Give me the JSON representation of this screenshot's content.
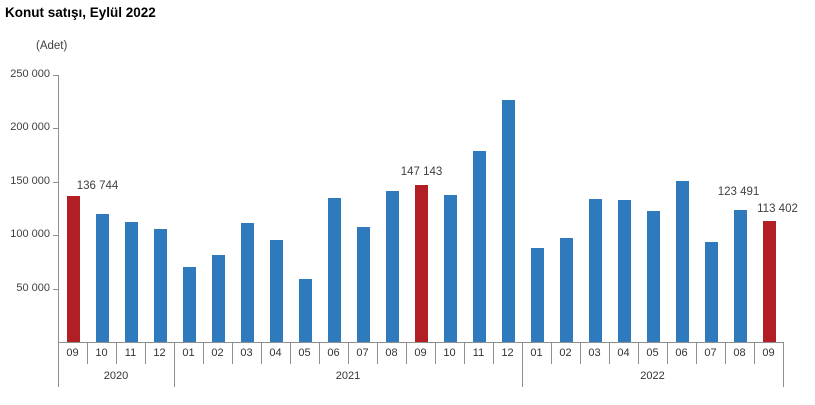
{
  "page": {
    "title": "Konut satışı, Eylül 2022",
    "unit_label": "(Adet)"
  },
  "colors": {
    "bar_blue": "#2e7abc",
    "bar_red": "#b11f24",
    "axis_line": "#8f8f8f",
    "value_text": "#404040"
  },
  "chart_data": {
    "type": "bar",
    "title": "Konut satışı, Eylül 2022",
    "ylabel": "(Adet)",
    "ylim": [
      0,
      250000
    ],
    "y_tick_step": 50000,
    "y_ticks": [
      "250 000",
      "200 000",
      "150 000",
      "100 000",
      "50 000"
    ],
    "grid": false,
    "legend": "none",
    "groups": [
      {
        "year": "2020",
        "months": [
          "09",
          "10",
          "11",
          "12"
        ]
      },
      {
        "year": "2021",
        "months": [
          "01",
          "02",
          "03",
          "04",
          "05",
          "06",
          "07",
          "08",
          "09",
          "10",
          "11",
          "12"
        ]
      },
      {
        "year": "2022",
        "months": [
          "01",
          "02",
          "03",
          "04",
          "05",
          "06",
          "07",
          "08",
          "09"
        ]
      }
    ],
    "series": [
      {
        "name": "Konut satışı",
        "values": [
          136744,
          119574,
          112483,
          105981,
          70587,
          81222,
          111241,
          95863,
          59166,
          134731,
          107785,
          141400,
          147143,
          137401,
          178814,
          226503,
          88306,
          97587,
          134170,
          133058,
          122768,
          150509,
          93902,
          123491,
          113402
        ]
      }
    ],
    "highlight_indices": [
      0,
      12,
      24
    ],
    "data_labels": [
      {
        "index": 0,
        "text": "136 744"
      },
      {
        "index": 12,
        "text": "147 143"
      },
      {
        "index": 23,
        "text": "123 491"
      },
      {
        "index": 24,
        "text": "113 402"
      }
    ]
  }
}
